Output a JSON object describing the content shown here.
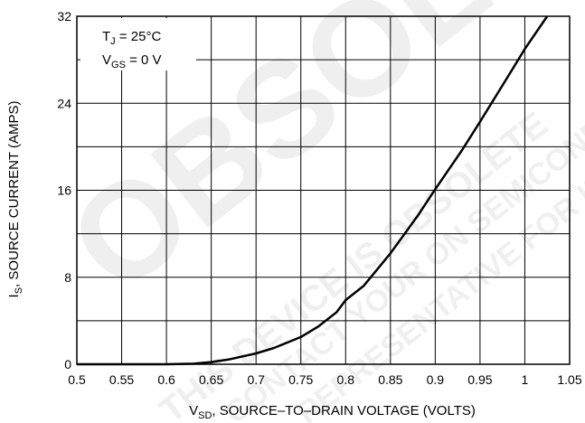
{
  "chart_data": {
    "type": "line",
    "title": "",
    "xlabel": {
      "main": "V",
      "sub": "SD",
      "rest": ", SOURCE–TO–DRAIN VOLTAGE (VOLTS)"
    },
    "ylabel": {
      "main": "I",
      "sub": "S",
      "rest": ", SOURCE CURRENT (AMPS)"
    },
    "xlim": [
      0.5,
      1.05
    ],
    "ylim": [
      0,
      32
    ],
    "x_ticks": [
      0.5,
      0.55,
      0.6,
      0.65,
      0.7,
      0.75,
      0.8,
      0.85,
      0.9,
      0.95,
      1,
      1.05
    ],
    "x_tick_labels": [
      "0.5",
      "0.55",
      "0.6",
      "0.65",
      "0.7",
      "0.75",
      "0.8",
      "0.85",
      "0.9",
      "0.95",
      "1",
      "1.05"
    ],
    "y_ticks": [
      0,
      8,
      16,
      24,
      32
    ],
    "y_tick_labels": [
      "0",
      "8",
      "16",
      "24",
      "32"
    ],
    "grid": true,
    "conditions": [
      {
        "main": "T",
        "sub": "J",
        "rest": " = 25°C"
      },
      {
        "main": "V",
        "sub": "GS",
        "rest": " = 0 V"
      }
    ],
    "watermark": [
      "OBSOLETE",
      "THIS DEVICE IS OBSOLETE",
      "CONTACT YOUR ON SEMICONDUCTOR",
      "REPRESENTATIVE FOR INFORMATION"
    ],
    "series": [
      {
        "x": [
          0.5,
          0.55,
          0.6,
          0.63,
          0.65,
          0.67,
          0.7,
          0.72,
          0.75,
          0.77,
          0.79,
          0.8,
          0.82,
          0.85,
          0.88,
          0.9,
          0.93,
          0.95,
          0.98,
          1.0,
          1.025
        ],
        "y": [
          0,
          0,
          0,
          0.05,
          0.2,
          0.45,
          1.0,
          1.5,
          2.5,
          3.5,
          4.8,
          5.9,
          7.2,
          10.2,
          13.6,
          16.1,
          19.7,
          22.3,
          26.3,
          29.0,
          32.0
        ]
      }
    ],
    "line_color": "#000000"
  }
}
